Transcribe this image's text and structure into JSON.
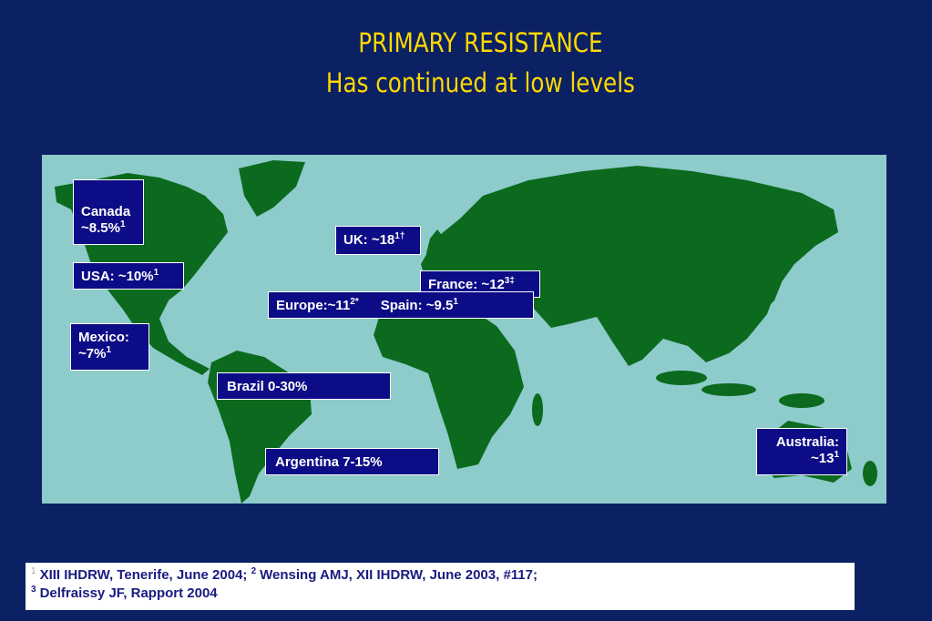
{
  "title": "PRIMARY RESISTANCE",
  "subtitle": "Has continued at low levels",
  "labels": {
    "canada": {
      "name": "Canada",
      "value": "~8.5%",
      "sup": "1"
    },
    "uk": {
      "text": "UK: ~18",
      "sup": "1†"
    },
    "usa": {
      "text": "USA: ~10%",
      "sup": "1"
    },
    "france": {
      "text": "France: ~12",
      "sup": "3‡"
    },
    "europe": {
      "text": "Europe:~11",
      "sup": "2*"
    },
    "spain": {
      "text": "Spain: ~9.5",
      "sup": "1"
    },
    "mexico": {
      "name": "Mexico:",
      "value": "~7%",
      "sup": "1"
    },
    "brazil": {
      "text": "Brazil 0-30%"
    },
    "argentina": {
      "text": "Argentina 7-15%"
    },
    "australia": {
      "name": "Australia:",
      "value": "~13",
      "sup": "1"
    }
  },
  "footnote": {
    "ref1": "1",
    "text1": "XIII IHDRW, Tenerife, June 2004;",
    "ref2": "2",
    "text2": "Wensing AMJ, XII IHDRW, June 2003, #117;",
    "ref3": "3",
    "text3": "Delfraissy JF, Rapport 2004"
  }
}
